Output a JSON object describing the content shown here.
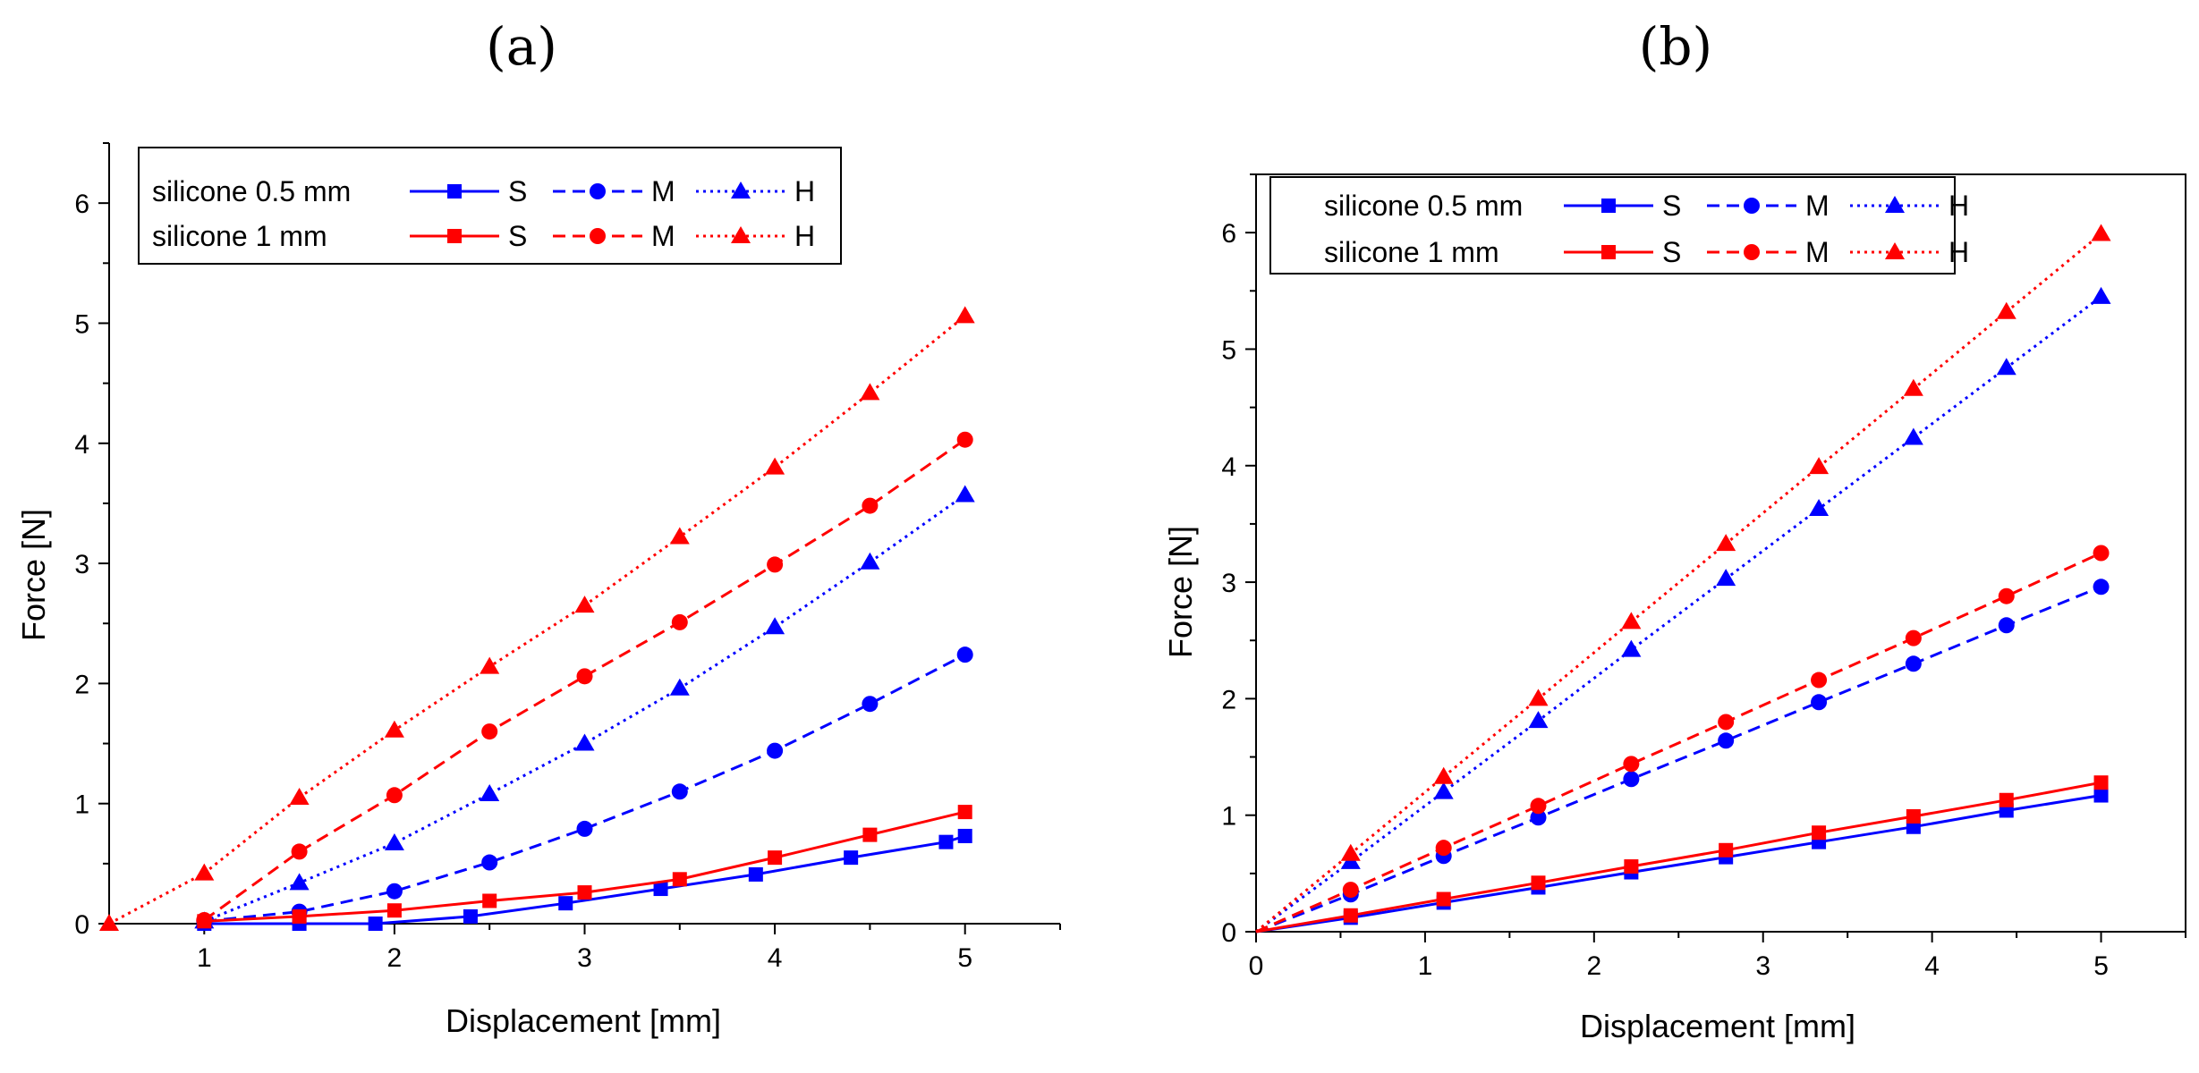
{
  "colors": {
    "series_05mm": "#0000ff",
    "series_1mm": "#ff0000",
    "axis": "#000000"
  },
  "chart_data": [
    {
      "panel_label": "(a)",
      "type": "line",
      "xlabel": "Displacement [mm]",
      "ylabel": "Force [N]",
      "xlim": [
        0.5,
        5.5
      ],
      "ylim": [
        0,
        6.5
      ],
      "xticks": [
        1,
        2,
        3,
        4,
        5
      ],
      "xtick_labels": [
        "1",
        "2",
        "3",
        "4",
        "5"
      ],
      "yticks": [
        0,
        1,
        2,
        3,
        4,
        5,
        6
      ],
      "ytick_labels": [
        "0",
        "1",
        "2",
        "3",
        "4",
        "5",
        "6"
      ],
      "legend": {
        "position": "top-left",
        "rows": [
          {
            "label": "silicone 0.5 mm",
            "group": "0.5mm",
            "entries": [
              "S",
              "M",
              "H"
            ]
          },
          {
            "label": "silicone 1 mm",
            "group": "1mm",
            "entries": [
              "S",
              "M",
              "H"
            ]
          }
        ]
      },
      "series": [
        {
          "name": "silicone 0.5 mm S",
          "group": "0.5mm",
          "variant": "S",
          "marker": "square",
          "dash": "solid",
          "x": [
            1.0,
            1.5,
            1.9,
            2.4,
            2.9,
            3.4,
            3.9,
            4.4,
            4.9,
            5.0
          ],
          "y": [
            0.0,
            0.0,
            0.0,
            0.06,
            0.17,
            0.29,
            0.41,
            0.55,
            0.68,
            0.73
          ]
        },
        {
          "name": "silicone 0.5 mm M",
          "group": "0.5mm",
          "variant": "M",
          "marker": "circle",
          "dash": "dashed",
          "x": [
            1.0,
            1.5,
            2.0,
            2.5,
            3.0,
            3.5,
            4.0,
            4.5,
            5.0
          ],
          "y": [
            0.02,
            0.1,
            0.27,
            0.51,
            0.79,
            1.1,
            1.44,
            1.83,
            2.24
          ]
        },
        {
          "name": "silicone 0.5 mm H",
          "group": "0.5mm",
          "variant": "H",
          "marker": "triangle",
          "dash": "dotted",
          "x": [
            1.0,
            1.5,
            2.0,
            2.5,
            3.0,
            3.5,
            4.0,
            4.5,
            5.0
          ],
          "y": [
            0.02,
            0.34,
            0.67,
            1.08,
            1.5,
            1.96,
            2.47,
            3.01,
            3.57
          ]
        },
        {
          "name": "silicone 1 mm S",
          "group": "1mm",
          "variant": "S",
          "marker": "square",
          "dash": "solid",
          "x": [
            1.0,
            1.5,
            2.0,
            2.5,
            3.0,
            3.5,
            4.0,
            4.5,
            5.0
          ],
          "y": [
            0.02,
            0.06,
            0.11,
            0.19,
            0.26,
            0.37,
            0.55,
            0.74,
            0.93
          ]
        },
        {
          "name": "silicone 1 mm M",
          "group": "1mm",
          "variant": "M",
          "marker": "circle",
          "dash": "dashed",
          "x": [
            1.0,
            1.5,
            2.0,
            2.5,
            3.0,
            3.5,
            4.0,
            4.5,
            5.0
          ],
          "y": [
            0.03,
            0.6,
            1.07,
            1.6,
            2.06,
            2.51,
            2.99,
            3.48,
            4.03
          ]
        },
        {
          "name": "silicone 1 mm H",
          "group": "1mm",
          "variant": "H",
          "marker": "triangle",
          "dash": "dotted",
          "x": [
            0.5,
            1.0,
            1.5,
            2.0,
            2.5,
            3.0,
            3.5,
            4.0,
            4.5,
            5.0
          ],
          "y": [
            0.0,
            0.42,
            1.05,
            1.61,
            2.14,
            2.65,
            3.22,
            3.8,
            4.42,
            5.06
          ]
        }
      ]
    },
    {
      "panel_label": "(b)",
      "type": "line",
      "xlabel": "Displacement [mm]",
      "ylabel": "Force [N]",
      "xlim": [
        0,
        5.5
      ],
      "ylim": [
        0,
        6.5
      ],
      "xticks": [
        0,
        1,
        2,
        3,
        4,
        5
      ],
      "xtick_labels": [
        "0",
        "1",
        "2",
        "3",
        "4",
        "5"
      ],
      "yticks": [
        0,
        1,
        2,
        3,
        4,
        5,
        6
      ],
      "ytick_labels": [
        "0",
        "1",
        "2",
        "3",
        "4",
        "5",
        "6"
      ],
      "legend": {
        "position": "top-left",
        "rows": [
          {
            "label": "silicone 0.5 mm",
            "group": "0.5mm",
            "entries": [
              "S",
              "M",
              "H"
            ]
          },
          {
            "label": "silicone 1 mm",
            "group": "1mm",
            "entries": [
              "S",
              "M",
              "H"
            ]
          }
        ]
      },
      "series": [
        {
          "name": "silicone 0.5 mm S",
          "group": "0.5mm",
          "variant": "S",
          "marker": "square",
          "dash": "solid",
          "x": [
            0,
            0.56,
            1.11,
            1.67,
            2.22,
            2.78,
            3.33,
            3.89,
            4.44,
            5.0
          ],
          "y": [
            0,
            0.12,
            0.25,
            0.38,
            0.51,
            0.64,
            0.77,
            0.9,
            1.04,
            1.17
          ]
        },
        {
          "name": "silicone 0.5 mm M",
          "group": "0.5mm",
          "variant": "M",
          "marker": "circle",
          "dash": "dashed",
          "x": [
            0,
            0.56,
            1.11,
            1.67,
            2.22,
            2.78,
            3.33,
            3.89,
            4.44,
            5.0
          ],
          "y": [
            0,
            0.32,
            0.65,
            0.98,
            1.31,
            1.64,
            1.97,
            2.3,
            2.63,
            2.96
          ]
        },
        {
          "name": "silicone 0.5 mm H",
          "group": "0.5mm",
          "variant": "H",
          "marker": "triangle",
          "dash": "dotted",
          "x": [
            0,
            0.56,
            1.11,
            1.67,
            2.22,
            2.78,
            3.33,
            3.89,
            4.44,
            5.0
          ],
          "y": [
            0,
            0.6,
            1.2,
            1.81,
            2.42,
            3.03,
            3.63,
            4.24,
            4.84,
            5.45
          ]
        },
        {
          "name": "silicone 1 mm S",
          "group": "1mm",
          "variant": "S",
          "marker": "square",
          "dash": "solid",
          "x": [
            0,
            0.56,
            1.11,
            1.67,
            2.22,
            2.78,
            3.33,
            3.89,
            4.44,
            5.0
          ],
          "y": [
            0,
            0.14,
            0.28,
            0.42,
            0.56,
            0.7,
            0.85,
            0.99,
            1.13,
            1.28
          ]
        },
        {
          "name": "silicone 1 mm M",
          "group": "1mm",
          "variant": "M",
          "marker": "circle",
          "dash": "dashed",
          "x": [
            0,
            0.56,
            1.11,
            1.67,
            2.22,
            2.78,
            3.33,
            3.89,
            4.44,
            5.0
          ],
          "y": [
            0,
            0.36,
            0.72,
            1.08,
            1.44,
            1.8,
            2.16,
            2.52,
            2.88,
            3.25
          ]
        },
        {
          "name": "silicone 1 mm H",
          "group": "1mm",
          "variant": "H",
          "marker": "triangle",
          "dash": "dotted",
          "x": [
            0,
            0.56,
            1.11,
            1.67,
            2.22,
            2.78,
            3.33,
            3.89,
            4.44,
            5.0
          ],
          "y": [
            0,
            0.67,
            1.33,
            2.0,
            2.66,
            3.33,
            3.99,
            4.66,
            5.32,
            5.99
          ]
        }
      ]
    }
  ]
}
